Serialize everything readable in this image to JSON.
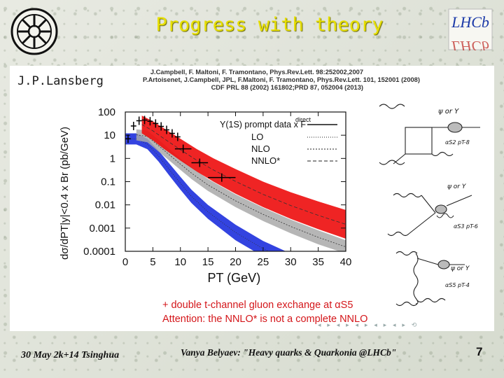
{
  "slide": {
    "title": "Progress with theory",
    "author": "J.P.Lansberg",
    "references": [
      "J.Campbell, F. Maltoni, F. Tramontano, Phys.Rev.Lett. 98:252002,2007",
      "P.Artoisenet, J.Campbell, JPL, F.Maltoni, F. Tramontano, Phys.Rev.Lett. 101, 152001 (2008)",
      "CDF PRL 88 (2002) 161802;PRD 87, 052004 (2013)"
    ],
    "note_lines": [
      "+ double t-channel gluon exchange at αS5",
      "Attention: the NNLO* is not a complete NNLO"
    ],
    "right_logo_text": "LHCb",
    "footer": {
      "date": "30 May 2k+14 Tsinghua",
      "talk": "Vanya Belyaev: \"Heavy quarks & Quarkonia @LHCb\"",
      "page": "7"
    },
    "diagram_labels": {
      "d1": {
        "particle": "ψ or Υ",
        "order": "αS2 pT-8"
      },
      "d2": {
        "particle": "ψ or Υ",
        "order": "αS3 pT-6"
      },
      "d3": {
        "particle": "ψ or Υ",
        "order": "αS5 pT-4"
      }
    },
    "colors": {
      "title": "#e8e000",
      "lo_band": "#2233dd",
      "nlo_band": "#a9a9a9",
      "nnlo_band": "#ee1111",
      "note": "#d4161a"
    }
  },
  "chart_data": {
    "type": "line",
    "xlabel": "PT (GeV)",
    "ylabel": "dσ/dPT|y|<0.4 x Br (pb/GeV)",
    "xlim": [
      0,
      40
    ],
    "ylim": [
      0.0001,
      100
    ],
    "log_y": true,
    "x_ticks": [
      "0",
      "5",
      "10",
      "15",
      "20",
      "25",
      "30",
      "35",
      "40"
    ],
    "y_ticks": [
      "100",
      "10",
      "1",
      "0.1",
      "0.01",
      "0.001",
      "0.0001"
    ],
    "legend_title": "Υ(1S) prompt data x F",
    "legend_title_sup": "direct",
    "legend": [
      "LO",
      "NLO",
      "NNLO*"
    ],
    "legend_position": "top-right",
    "data_points": {
      "x": [
        0.5,
        1.5,
        2.5,
        3.5,
        4.5,
        5.5,
        6.5,
        7.5,
        8.5,
        9.5,
        10.5,
        13.5,
        17.5
      ],
      "xerr": [
        0.5,
        0.5,
        0.5,
        0.5,
        0.5,
        0.5,
        0.5,
        0.5,
        0.5,
        0.5,
        1.5,
        1.5,
        2.5
      ],
      "y": [
        7,
        25,
        42,
        45,
        40,
        32,
        24,
        17,
        12,
        8.5,
        2.6,
        0.65,
        0.15
      ]
    },
    "bands": [
      {
        "name": "LO",
        "x": [
          0,
          2,
          4,
          6,
          8,
          10,
          12,
          15,
          20,
          25,
          30,
          35,
          38
        ],
        "lo": [
          4,
          4,
          2.5,
          0.75,
          0.18,
          0.045,
          0.012,
          0.0025,
          0.0003,
          6e-05,
          1.5e-05,
          4e-06,
          2e-06
        ],
        "hi": [
          12,
          12,
          7,
          2.2,
          0.6,
          0.16,
          0.045,
          0.01,
          0.0014,
          0.00028,
          8e-05,
          2.5e-05,
          1.3e-05
        ]
      },
      {
        "name": "NLO",
        "x": [
          2,
          4,
          6,
          8,
          10,
          12,
          15,
          20,
          25,
          30,
          35,
          40
        ],
        "lo": [
          6,
          5,
          2,
          0.8,
          0.32,
          0.13,
          0.04,
          0.008,
          0.002,
          0.0006,
          0.0002,
          8e-05
        ],
        "hi": [
          18,
          16,
          6.5,
          2.5,
          1.0,
          0.42,
          0.13,
          0.028,
          0.0075,
          0.0023,
          0.0008,
          0.0003
        ]
      },
      {
        "name": "NNLO*",
        "x": [
          3,
          5,
          7,
          10,
          13,
          16,
          20,
          25,
          30,
          35,
          40
        ],
        "lo": [
          12,
          6,
          2.6,
          0.8,
          0.27,
          0.1,
          0.03,
          0.008,
          0.0025,
          0.0009,
          0.00035
        ],
        "hi": [
          70,
          40,
          20,
          7,
          2.5,
          1.0,
          0.35,
          0.1,
          0.035,
          0.014,
          0.006
        ]
      }
    ]
  }
}
